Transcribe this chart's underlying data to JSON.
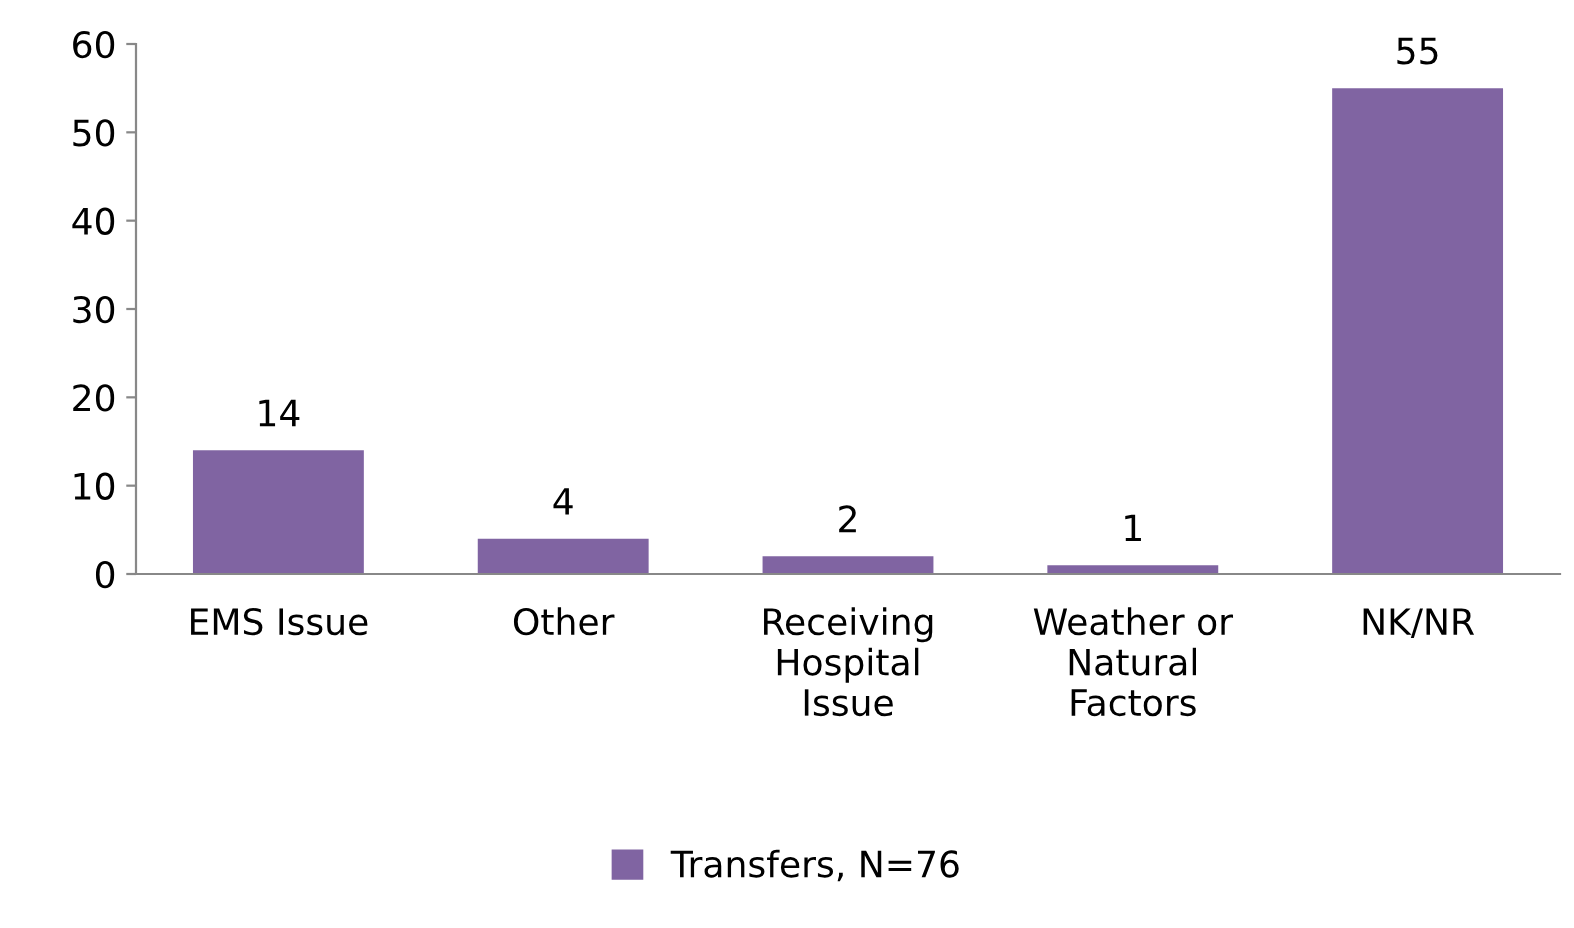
{
  "chart_data": {
    "type": "bar",
    "categories": [
      "EMS Issue",
      "Other",
      "Receiving\nHospital\nIssue",
      "Weather or\nNatural\nFactors",
      "NK/NR"
    ],
    "series": [
      {
        "name": "Transfers, N=76",
        "color": "#8064a2",
        "values": [
          14,
          4,
          2,
          1,
          55
        ]
      }
    ],
    "ylim": [
      0,
      60
    ],
    "yticks": [
      0,
      10,
      20,
      30,
      40,
      50,
      60
    ],
    "grid": false,
    "legend": "bottom",
    "data_labels": true
  }
}
